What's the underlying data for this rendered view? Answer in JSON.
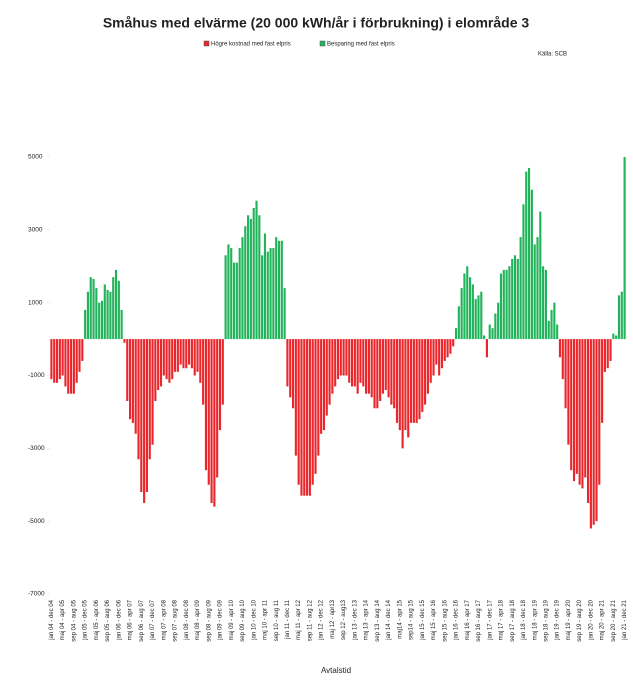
{
  "chart_data": {
    "type": "bar",
    "title": "Småhus med elvärme (20 000 kWh/år i förbrukning) i  elområde 3",
    "source": "Källa: SCB",
    "x_label": "Avtalstid",
    "legend": [
      {
        "name": "Högre kostnad med fast elpris",
        "color": "#e8262b"
      },
      {
        "name": "Besparing med fast elpris",
        "color": "#21b35a"
      }
    ],
    "ylim": [
      -7000,
      5000
    ],
    "yticks": [
      -7000,
      -5000,
      -3000,
      -1000,
      1000,
      3000,
      5000
    ],
    "categories": [
      "jan 04 - dec 04",
      null,
      null,
      null,
      "maj 04 - apr 05",
      null,
      null,
      null,
      "sep 04 - aug 05",
      null,
      null,
      null,
      "jan 05 - dec 05",
      null,
      null,
      null,
      "maj 05 - apr 06",
      null,
      null,
      null,
      "sep 05 - aug 06",
      null,
      null,
      null,
      "jan 06 - dec 06",
      null,
      null,
      null,
      "maj 06 - apr 07",
      null,
      null,
      null,
      "sep 06 - aug 07",
      null,
      null,
      null,
      "jan 07 - dec 07",
      null,
      null,
      null,
      "maj 07 - apr 08",
      null,
      null,
      null,
      "sep 07 - aug 08",
      null,
      null,
      null,
      "jan 08 - dec 08",
      null,
      null,
      null,
      "maj 08 - apr 09",
      null,
      null,
      null,
      "sep 08 - aug 09",
      null,
      null,
      null,
      "jan 09 - dec 09",
      null,
      null,
      null,
      "maj 09 - apr 10",
      null,
      null,
      null,
      "sep 09 - aug 10",
      null,
      null,
      null,
      "jan 10 - dec 10",
      null,
      null,
      null,
      "maj 10 - apr 11",
      null,
      null,
      null,
      "sep 10 - aug 11",
      null,
      null,
      null,
      "jan 11 - dec 11",
      null,
      null,
      null,
      "maj 11 - apr 12",
      null,
      null,
      null,
      "sep 11 - aug 12",
      null,
      null,
      null,
      "jan 12 - dec 12",
      null,
      null,
      null,
      "maj 12 - apr13",
      null,
      null,
      null,
      "sep 12 - aug13",
      null,
      null,
      null,
      "jan 13 - dec 13",
      null,
      null,
      null,
      "maj 13 - apr 14",
      null,
      null,
      null,
      "sep 13 - aug 14",
      null,
      null,
      null,
      "jan 14 - dec 14",
      null,
      null,
      null,
      "maj14 - apr 15",
      null,
      null,
      null,
      "sep14 - aug 15",
      null,
      null,
      null,
      "jan 15 - dec 15",
      null,
      null,
      null,
      "maj 15 - apr 16",
      null,
      null,
      null,
      "sep 15 - aug 16",
      null,
      null,
      null,
      "jan 16 - dec 16",
      null,
      null,
      null,
      "maj 16 - apr 17",
      null,
      null,
      null,
      "sep 16 - aug 17",
      null,
      null,
      null,
      "jan 17 - dec 17",
      null,
      null,
      null,
      "maj 17 - apr 18",
      null,
      null,
      null,
      "sep 17 - aug 18",
      null,
      null,
      null,
      "jan 18 - dec 18",
      null,
      null,
      null,
      "maj 18 - apr 19",
      null,
      null,
      null,
      "sep 18 - aug 19",
      null,
      null,
      null,
      "jan 19 - dec 19",
      null,
      null,
      null,
      "maj 19 - apr 20",
      null,
      null,
      null,
      "sep 19 - aug 20",
      null,
      null,
      null,
      "jan 20 - dec 20",
      null,
      null,
      null,
      "maj 20 - apr 21",
      null,
      null,
      null,
      "sep 20 - aug 21",
      null,
      null,
      null,
      "jan 21 - dec 21"
    ],
    "values": [
      -1100,
      -1200,
      -1200,
      -1100,
      -1000,
      -1300,
      -1500,
      -1500,
      -1500,
      -1200,
      -900,
      -600,
      800,
      1300,
      1700,
      1650,
      1400,
      1000,
      1050,
      1500,
      1350,
      1300,
      1700,
      1900,
      1600,
      800,
      -100,
      -1700,
      -2200,
      -2300,
      -2600,
      -3300,
      -4200,
      -4500,
      -4200,
      -3300,
      -2900,
      -1700,
      -1400,
      -1300,
      -1000,
      -1100,
      -1200,
      -1100,
      -900,
      -900,
      -700,
      -800,
      -800,
      -700,
      -800,
      -1000,
      -900,
      -1200,
      -1800,
      -3600,
      -4000,
      -4500,
      -4600,
      -3800,
      -2500,
      -1800,
      2300,
      2600,
      2500,
      2100,
      2100,
      2500,
      2800,
      3100,
      3400,
      3300,
      3600,
      3800,
      3400,
      2300,
      2900,
      2400,
      2500,
      2500,
      2800,
      2700,
      2700,
      1400,
      -1300,
      -1600,
      -1900,
      -3200,
      -4000,
      -4300,
      -4300,
      -4300,
      -4300,
      -4000,
      -3700,
      -3200,
      -2600,
      -2500,
      -2100,
      -1800,
      -1500,
      -1300,
      -1100,
      -1000,
      -1000,
      -1000,
      -1200,
      -1300,
      -1300,
      -1500,
      -1200,
      -1300,
      -1500,
      -1500,
      -1600,
      -1900,
      -1900,
      -1700,
      -1500,
      -1400,
      -1600,
      -1800,
      -1900,
      -2300,
      -2500,
      -3000,
      -2500,
      -2700,
      -2300,
      -2300,
      -2300,
      -2200,
      -2000,
      -1800,
      -1500,
      -1200,
      -1000,
      -700,
      -1000,
      -800,
      -600,
      -500,
      -400,
      -200,
      300,
      900,
      1400,
      1800,
      2000,
      1700,
      1500,
      1100,
      1200,
      1300,
      100,
      -500,
      400,
      300,
      700,
      1000,
      1800,
      1900,
      1900,
      2000,
      2200,
      2300,
      2200,
      2800,
      3700,
      4600,
      4700,
      4100,
      2600,
      2800,
      3500,
      2000,
      1900,
      500,
      800,
      1000,
      400,
      -500,
      -1100,
      -1900,
      -2900,
      -3600,
      -3900,
      -3700,
      -4000,
      -4100,
      -3800,
      -4500,
      -5200,
      -5100,
      -5000,
      -4000,
      -2300,
      -900,
      -800,
      -600,
      150,
      100,
      1200,
      1300,
      5000
    ]
  }
}
